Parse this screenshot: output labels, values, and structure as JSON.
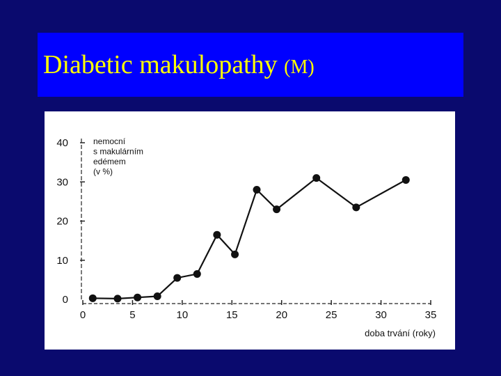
{
  "slide": {
    "title_main": "Diabetic makulopathy",
    "title_suffix": "(M)",
    "colors": {
      "background": "#0a0a6e",
      "title_bar": "#0000ff",
      "title_text": "#ffff00",
      "chart_bg": "#ffffff"
    }
  },
  "chart_data": {
    "type": "line",
    "ylabel_lines": [
      "nemocní",
      "s makulárním",
      "edémem",
      "(v %)"
    ],
    "xlabel": "doba trvání (roky)",
    "x_ticks": [
      0,
      5,
      10,
      15,
      20,
      25,
      30,
      35
    ],
    "y_ticks": [
      0,
      10,
      20,
      30,
      40
    ],
    "xlim": [
      0,
      35
    ],
    "ylim": [
      0,
      40
    ],
    "grid": false,
    "series": [
      {
        "x": [
          1,
          3.5,
          5.5,
          7.5,
          9.5,
          11.5,
          13.5,
          15.3,
          17.5,
          19.5,
          23.5,
          27.5,
          32.5
        ],
        "values": [
          0.3,
          0.2,
          0.5,
          0.8,
          5.5,
          6.5,
          16.5,
          11.5,
          28,
          23,
          31,
          23.5,
          30.5
        ]
      }
    ]
  }
}
